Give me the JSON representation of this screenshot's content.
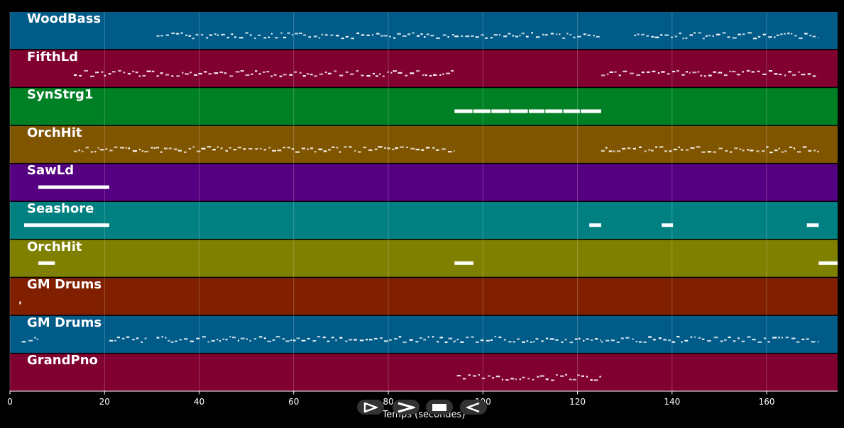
{
  "xaxis": {
    "label": "Temps (secondes)",
    "min": 0,
    "max": 175,
    "ticks": [
      0,
      20,
      40,
      60,
      80,
      100,
      120,
      140,
      160
    ]
  },
  "tracks": [
    {
      "name": "WoodBass",
      "color": "#005b88",
      "notes": "dense",
      "segments": [
        [
          31,
          94
        ],
        [
          94,
          125
        ],
        [
          132,
          171
        ]
      ]
    },
    {
      "name": "FifthLd",
      "color": "#800030",
      "notes": "dense",
      "segments": [
        [
          13.5,
          94
        ],
        [
          125,
          171
        ]
      ]
    },
    {
      "name": "SynStrg1",
      "color": "#008025",
      "notes": "long",
      "segments": [
        [
          94,
          97.8
        ],
        [
          98,
          101.6
        ],
        [
          101.8,
          105.6
        ],
        [
          105.8,
          109.5
        ],
        [
          109.7,
          113
        ],
        [
          113.2,
          116.8
        ],
        [
          117,
          120.5
        ],
        [
          120.7,
          125
        ]
      ]
    },
    {
      "name": "OrchHit",
      "color": "#805500",
      "notes": "dense",
      "segments": [
        [
          13.5,
          94
        ],
        [
          125,
          171
        ]
      ]
    },
    {
      "name": "SawLd",
      "color": "#550080",
      "notes": "long",
      "segments": [
        [
          6,
          21
        ]
      ]
    },
    {
      "name": "Seashore",
      "color": "#008080",
      "notes": "long",
      "segments": [
        [
          3,
          21
        ],
        [
          122.5,
          125
        ],
        [
          137.8,
          140.2
        ],
        [
          168.5,
          171
        ]
      ]
    },
    {
      "name": "OrchHit",
      "color": "#808000",
      "notes": "long",
      "segments": [
        [
          6,
          9.5
        ],
        [
          94,
          98
        ],
        [
          171,
          175
        ]
      ]
    },
    {
      "name": "GM Drums",
      "color": "#802000",
      "notes": "sparse",
      "segments": [
        [
          2,
          2.3
        ]
      ]
    },
    {
      "name": "GM Drums",
      "color": "#005b88",
      "notes": "dense",
      "segments": [
        [
          2.5,
          6
        ],
        [
          21,
          29
        ],
        [
          31,
          94
        ],
        [
          94,
          125
        ],
        [
          125,
          171
        ]
      ]
    },
    {
      "name": "GrandPno",
      "color": "#800030",
      "notes": "dense",
      "segments": [
        [
          94.5,
          125
        ]
      ]
    }
  ],
  "controls": [
    {
      "name": "play-button",
      "icon": "play-icon"
    },
    {
      "name": "fast-forward-button",
      "icon": "fast-forward-icon"
    },
    {
      "name": "stop-button",
      "icon": "stop-icon"
    },
    {
      "name": "rewind-button",
      "icon": "rewind-icon"
    }
  ]
}
